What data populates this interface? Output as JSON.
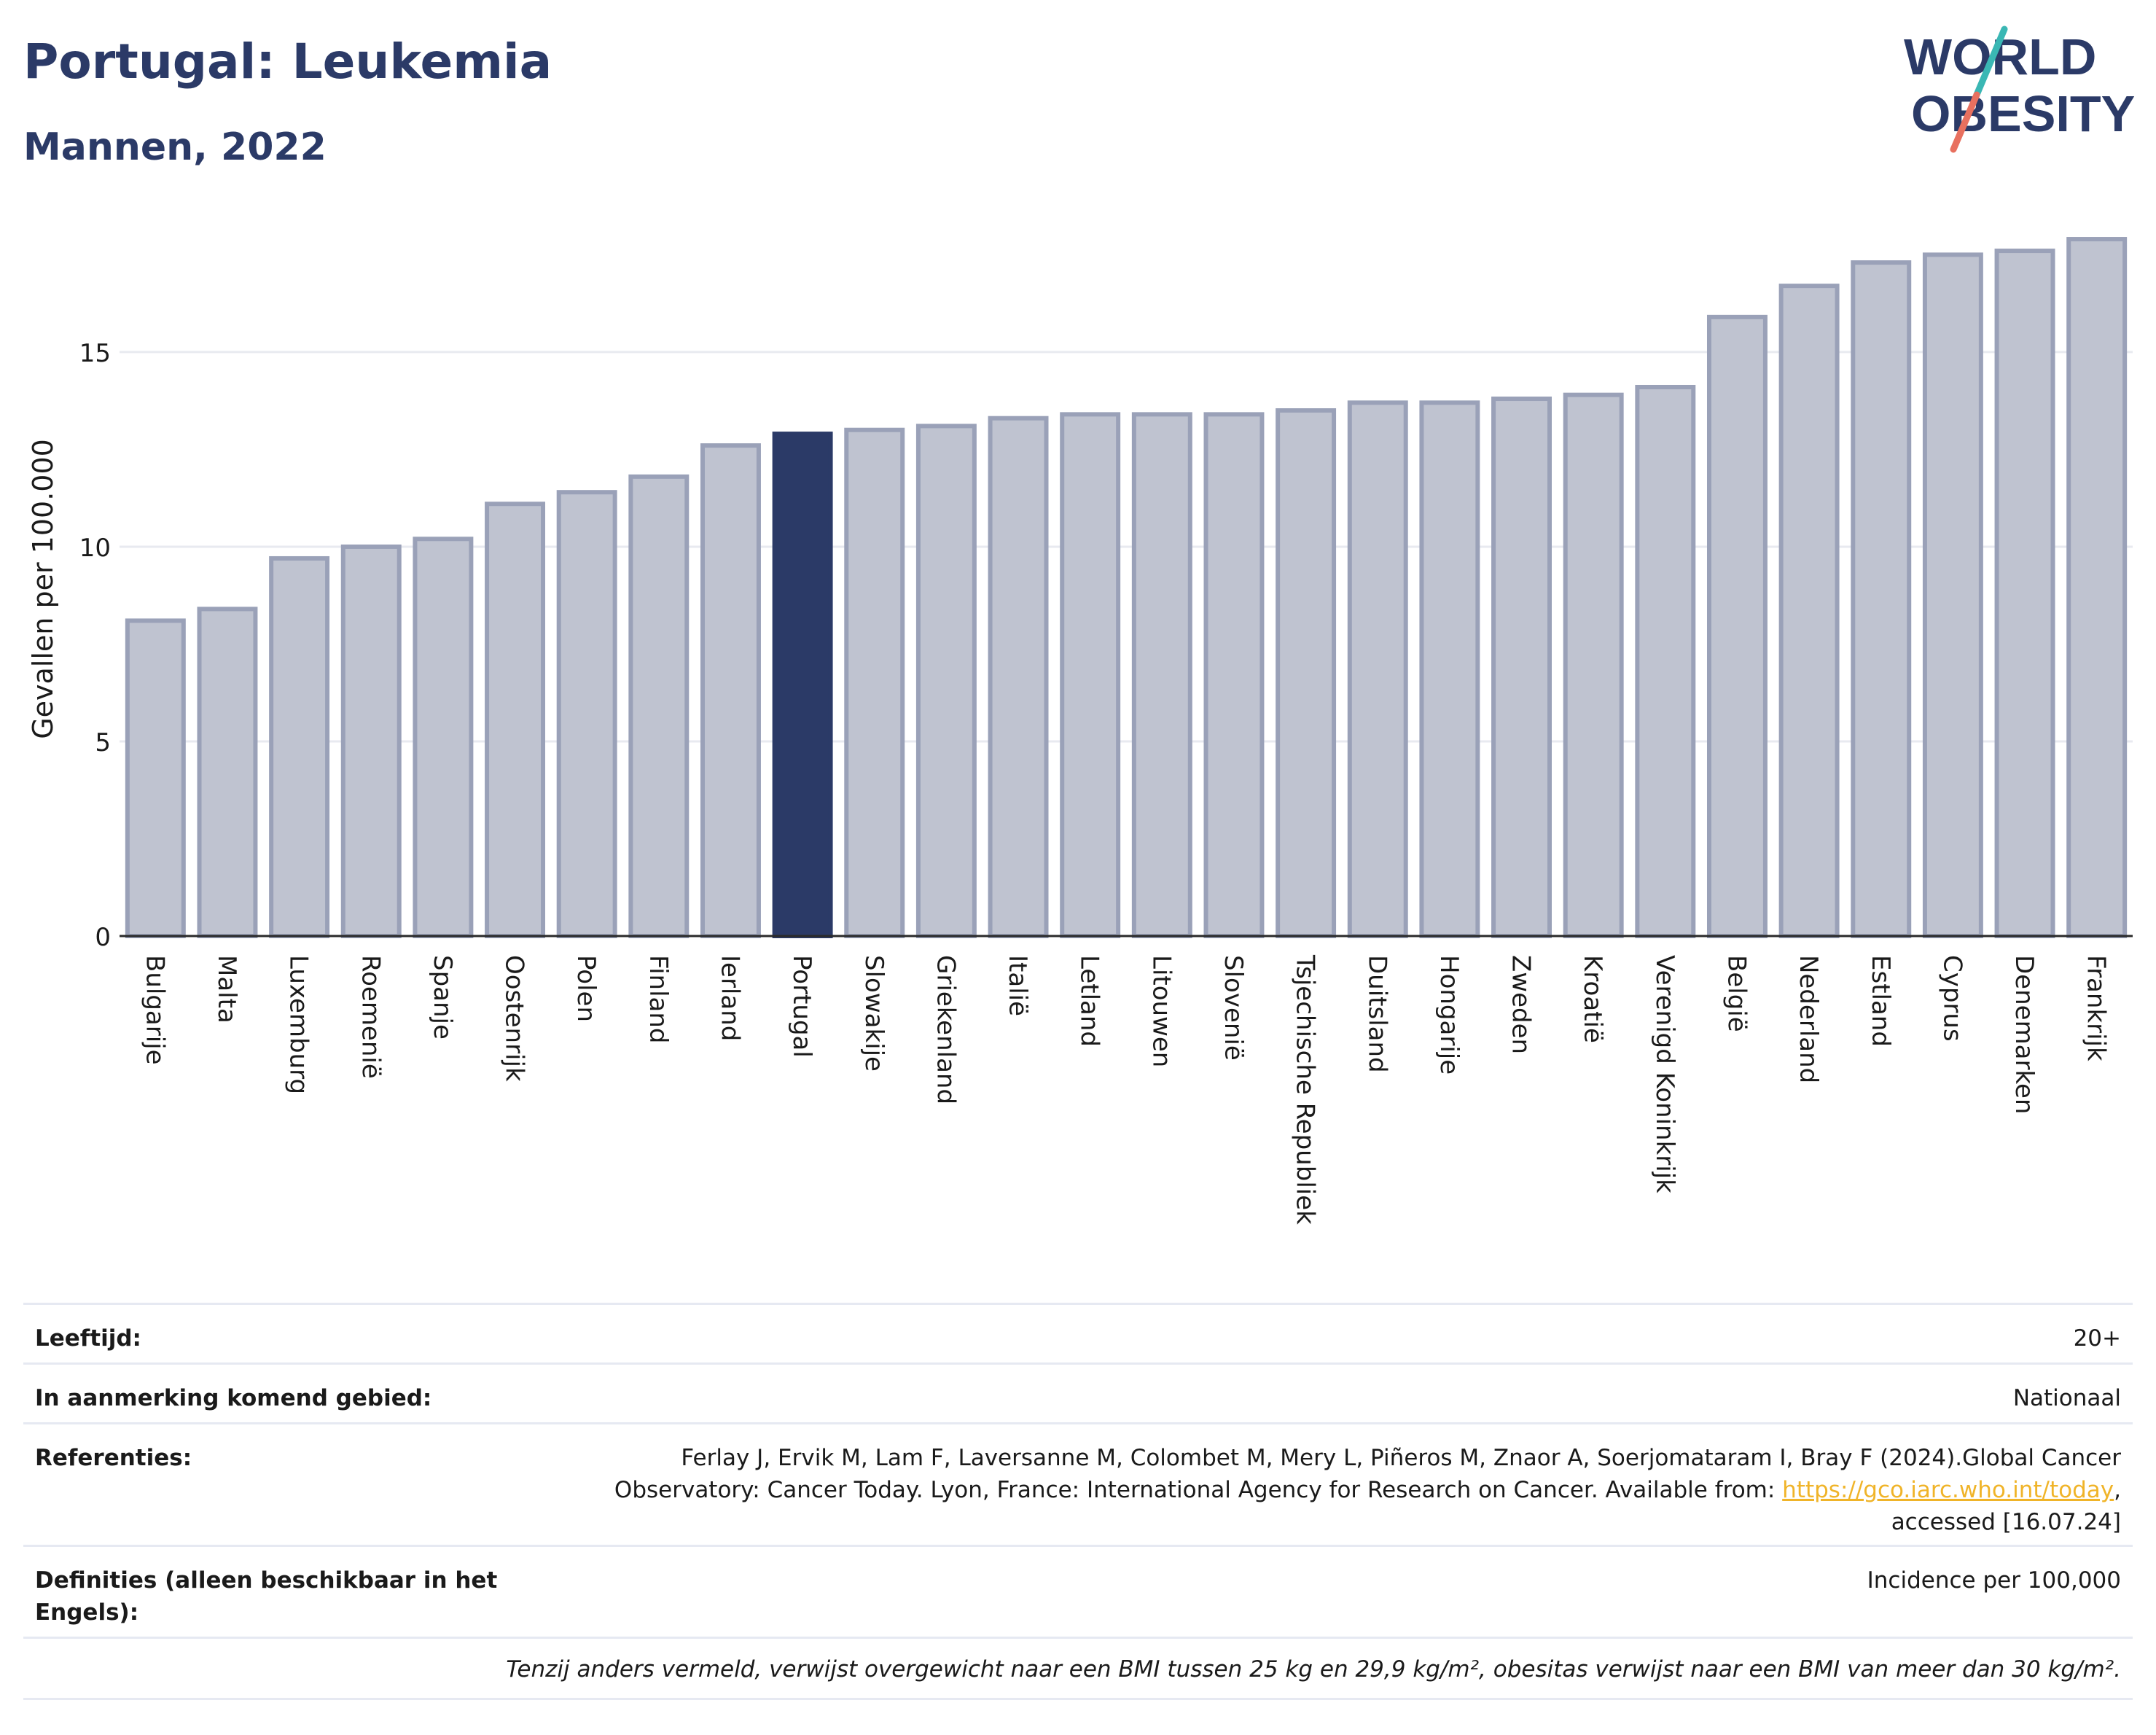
{
  "header": {
    "title": "Portugal: Leukemia",
    "subtitle": "Mannen, 2022"
  },
  "logo": {
    "line1": "WORLD",
    "line2": "OBESITY",
    "colors": {
      "text": "#2b3a67",
      "slash_teal": "#3ab7b4",
      "slash_coral": "#e8705f"
    }
  },
  "chart_data": {
    "type": "bar",
    "ylabel": "Gevallen per 100.000",
    "xlabel": "",
    "ylim": [
      0,
      18.5
    ],
    "yticks": [
      0,
      5,
      10,
      15
    ],
    "highlight": "Portugal",
    "colors": {
      "bar": "#bfc3d0",
      "bar_edge": "#9aa1b8",
      "highlight": "#2b3a67",
      "grid": "#e8eaf0"
    },
    "categories": [
      "Bulgarije",
      "Malta",
      "Luxemburg",
      "Roemenië",
      "Spanje",
      "Oostenrijk",
      "Polen",
      "Finland",
      "Ierland",
      "Portugal",
      "Slowakije",
      "Griekenland",
      "Italië",
      "Letland",
      "Litouwen",
      "Slovenië",
      "Tsjechische Republiek",
      "Duitsland",
      "Hongarije",
      "Zweden",
      "Kroatië",
      "Verenigd Koninkrijk",
      "België",
      "Nederland",
      "Estland",
      "Cyprus",
      "Denemarken",
      "Frankrijk"
    ],
    "values": [
      8.1,
      8.4,
      9.7,
      10.0,
      10.2,
      11.1,
      11.4,
      11.8,
      12.6,
      12.9,
      13.0,
      13.1,
      13.3,
      13.4,
      13.4,
      13.4,
      13.5,
      13.7,
      13.7,
      13.8,
      13.9,
      14.1,
      15.9,
      16.7,
      17.3,
      17.5,
      17.6,
      17.9
    ]
  },
  "meta": {
    "rows": [
      {
        "label": "Leeftijd:",
        "value": "20+"
      },
      {
        "label": "In aanmerking komend gebied:",
        "value": "Nationaal"
      },
      {
        "label": "Referenties:",
        "value_pre": "Ferlay J, Ervik M, Lam F, Laversanne M, Colombet M, Mery L, Piñeros M, Znaor A, Soerjomataram I, Bray F (2024).Global Cancer Observatory: Cancer Today. Lyon, France: International Agency for Research on Cancer. Available from: ",
        "link": "https://gco.iarc.who.int/today",
        "value_post": ", accessed [16.07.24]"
      },
      {
        "label": "Definities (alleen beschikbaar in het Engels):",
        "value": "Incidence per 100,000"
      }
    ],
    "footnote": "Tenzij anders vermeld, verwijst overgewicht naar een BMI tussen 25 kg en 29,9 kg/m², obesitas verwijst naar een BMI van meer dan 30 kg/m²."
  }
}
